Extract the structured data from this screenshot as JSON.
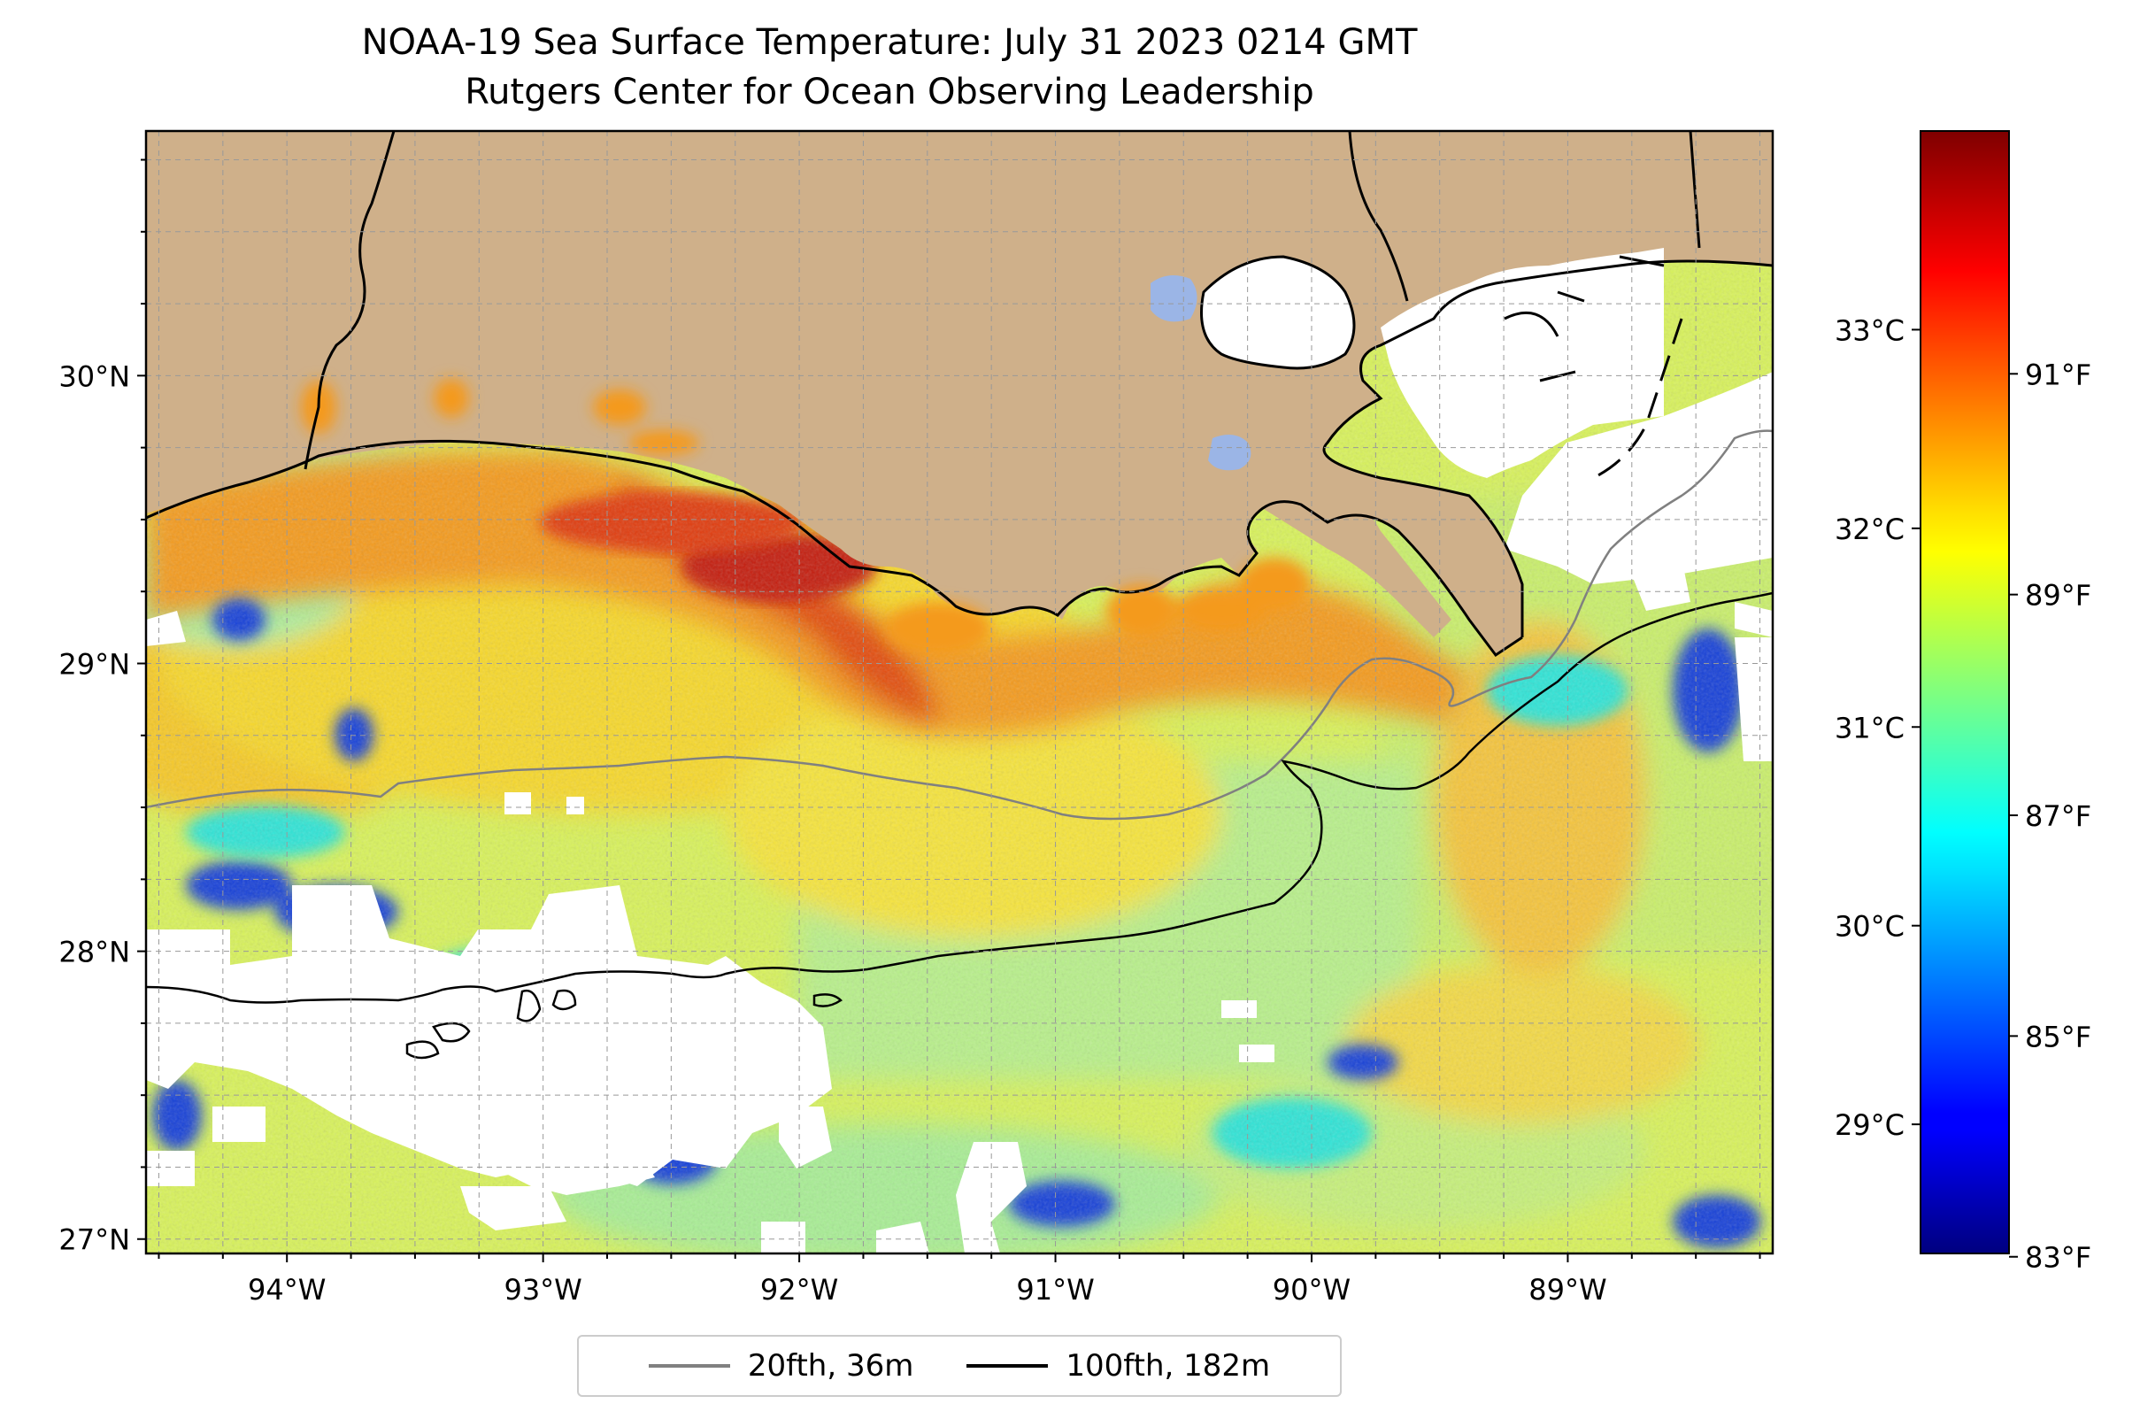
{
  "title": {
    "line1": "NOAA-19 Sea Surface Temperature: July 31 2023 0214 GMT",
    "line2": "Rutgers Center for Ocean Observing Leadership"
  },
  "map": {
    "lon_range": [
      -94.55,
      -88.2
    ],
    "lat_range": [
      26.95,
      30.85
    ],
    "lon_ticks": [
      {
        "value": -94,
        "label": "94°W"
      },
      {
        "value": -93,
        "label": "93°W"
      },
      {
        "value": -92,
        "label": "92°W"
      },
      {
        "value": -91,
        "label": "91°W"
      },
      {
        "value": -90,
        "label": "90°W"
      },
      {
        "value": -89,
        "label": "89°W"
      }
    ],
    "lat_ticks": [
      {
        "value": 30,
        "label": "30°N"
      },
      {
        "value": 29,
        "label": "29°N"
      },
      {
        "value": 28,
        "label": "28°N"
      },
      {
        "value": 27,
        "label": "27°N"
      }
    ],
    "grid": true,
    "colors": {
      "land": "#cfb08a",
      "lake": "#9bb5e6",
      "no_data": "#ffffff"
    }
  },
  "colorbar": {
    "colormap": "jet",
    "celsius_range": [
      28.35,
      34.0
    ],
    "celsius_ticks": [
      {
        "value": 29,
        "label": "29°C"
      },
      {
        "value": 30,
        "label": "30°C"
      },
      {
        "value": 31,
        "label": "31°C"
      },
      {
        "value": 32,
        "label": "32°C"
      },
      {
        "value": 33,
        "label": "33°C"
      }
    ],
    "fahrenheit_ticks": [
      {
        "value": 83,
        "label": "83°F"
      },
      {
        "value": 85,
        "label": "85°F"
      },
      {
        "value": 87,
        "label": "87°F"
      },
      {
        "value": 89,
        "label": "89°F"
      },
      {
        "value": 91,
        "label": "91°F"
      }
    ]
  },
  "legend": {
    "items": [
      {
        "label": "20fth, 36m",
        "color": "#808080"
      },
      {
        "label": "100fth, 182m",
        "color": "#000000"
      }
    ]
  }
}
